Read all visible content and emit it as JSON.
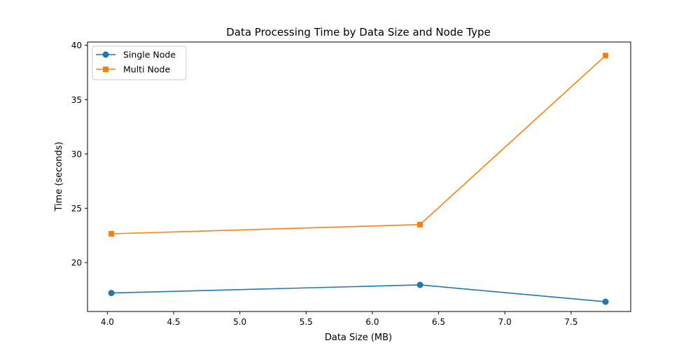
{
  "chart_data": {
    "type": "line",
    "title": "Data Processing Time by Data Size and Node Type",
    "xlabel": "Data Size (MB)",
    "ylabel": "Time (seconds)",
    "xlim": [
      3.85,
      7.95
    ],
    "ylim": [
      15.5,
      40.3
    ],
    "xticks": [
      4.0,
      4.5,
      5.0,
      5.5,
      6.0,
      6.5,
      7.0,
      7.5
    ],
    "xtick_labels": [
      "4.0",
      "4.5",
      "5.0",
      "5.5",
      "6.0",
      "6.5",
      "7.0",
      "7.5"
    ],
    "yticks": [
      20,
      25,
      30,
      35,
      40
    ],
    "ytick_labels": [
      "20",
      "25",
      "30",
      "35",
      "40"
    ],
    "grid": false,
    "legend_position": "top-left",
    "series": [
      {
        "name": "Single Node",
        "color": "#1f77b4",
        "marker": "circle",
        "x": [
          4.03,
          6.36,
          7.76
        ],
        "values": [
          17.2,
          17.95,
          16.4
        ]
      },
      {
        "name": "Multi Node",
        "color": "#ff7f0e",
        "marker": "square",
        "x": [
          4.03,
          6.36,
          7.76
        ],
        "values": [
          22.65,
          23.5,
          39.05
        ]
      }
    ]
  }
}
